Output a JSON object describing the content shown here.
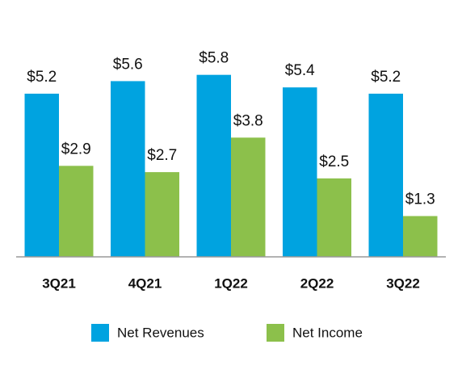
{
  "chart_data": {
    "type": "bar",
    "categories": [
      "3Q21",
      "4Q21",
      "1Q22",
      "2Q22",
      "3Q22"
    ],
    "series": [
      {
        "name": "Net Revenues",
        "color": "#00a3e0",
        "values": [
          5.2,
          5.6,
          5.8,
          5.4,
          5.2
        ],
        "value_labels": [
          "$5.2",
          "$5.6",
          "$5.8",
          "$5.4",
          "$5.2"
        ]
      },
      {
        "name": "Net Income",
        "color": "#8cc04b",
        "values": [
          2.9,
          2.7,
          3.8,
          2.5,
          1.3
        ],
        "value_labels": [
          "$2.9",
          "$2.7",
          "$3.8",
          "$2.5",
          "$1.3"
        ]
      }
    ]
  }
}
